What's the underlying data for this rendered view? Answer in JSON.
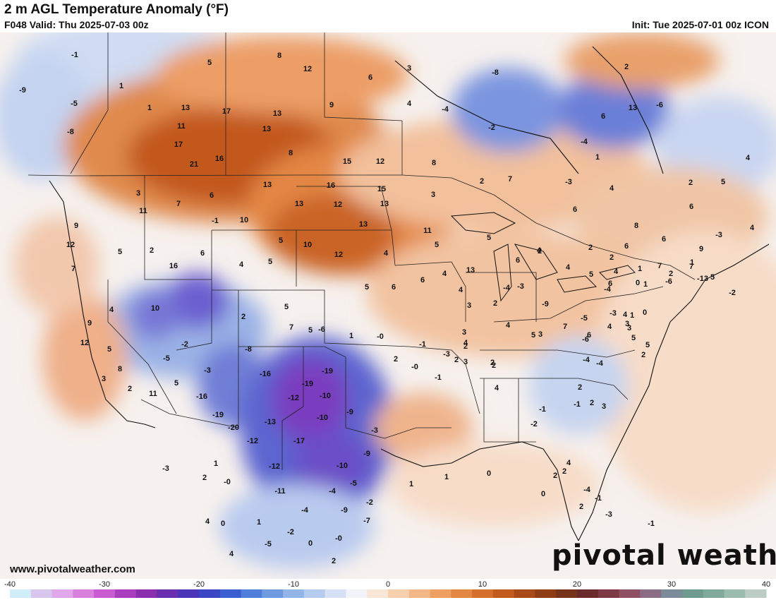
{
  "header": {
    "title": "2 m AGL Temperature Anomaly (°F)",
    "valid": "F048 Valid: Thu 2025-07-03 00z",
    "init": "Init: Tue 2025-07-01 00z ICON"
  },
  "footer": {
    "website": "www.pivotalweather.com",
    "wordmark": "pivotal weather"
  },
  "legend": {
    "ticks": [
      "-40",
      "-30",
      "-20",
      "-10",
      "0",
      "10",
      "20",
      "30",
      "40"
    ],
    "tick_values": [
      -40,
      -30,
      -20,
      -10,
      0,
      10,
      20,
      30,
      40
    ],
    "colors": [
      "#cfeef8",
      "#d9c6ef",
      "#e0a8ea",
      "#d97fdc",
      "#c85bd0",
      "#a93fbf",
      "#8a2fae",
      "#6a2fb0",
      "#4a35b8",
      "#3a46c4",
      "#3b5fd0",
      "#4f7fda",
      "#6f9ae0",
      "#93b5e8",
      "#b6ccef",
      "#d6e1f5",
      "#f1f3f9",
      "#fae6d6",
      "#f7d0b0",
      "#f3b888",
      "#eea063",
      "#e38744",
      "#d66f2c",
      "#c2591d",
      "#a84a17",
      "#8c3d14",
      "#76341a",
      "#6b2b2b",
      "#7d3a45",
      "#905063",
      "#8b6d86",
      "#7d8a99",
      "#6f9a8e",
      "#7fa99a",
      "#9bbbae",
      "#bccdc6"
    ]
  },
  "map": {
    "values": [
      "-1",
      "-9",
      "-5",
      "-8",
      "1",
      "1",
      "5",
      "8",
      "12",
      "13",
      "17",
      "13",
      "11",
      "13",
      "17",
      "9",
      "6",
      "3",
      "-8",
      "-2",
      "-4",
      "4",
      "2",
      "-6",
      "13",
      "6",
      "-4",
      "1",
      "8",
      "16",
      "21",
      "15",
      "12",
      "8",
      "3",
      "2",
      "7",
      "3",
      "11",
      "7",
      "6",
      "13",
      "16",
      "15",
      "13",
      "12",
      "13",
      "13",
      "9",
      "-1",
      "10",
      "12",
      "5",
      "5",
      "2",
      "10",
      "12",
      "16",
      "7",
      "6",
      "4",
      "11",
      "5",
      "4",
      "5",
      "5",
      "2",
      "-3",
      "4",
      "8",
      "6",
      "2",
      "4",
      "-3",
      "4",
      "6",
      "5",
      "6",
      "6",
      "2",
      "2",
      "7",
      "7",
      "9",
      "13",
      "6",
      "4",
      "4",
      "5",
      "4",
      "6",
      "1",
      "-6",
      "-13",
      "0",
      "4",
      "10",
      "9",
      "5",
      "8",
      "12",
      "3",
      "2",
      "11",
      "5",
      "2",
      "5",
      "7",
      "5",
      "5",
      "6",
      "6",
      "4",
      "4",
      "3",
      "2",
      "-4",
      "-3",
      "-9",
      "-2",
      "-5",
      "-3",
      "-8",
      "-16",
      "-16",
      "-19",
      "-20",
      "-19",
      "-19",
      "-12",
      "-10",
      "-10",
      "-9",
      "-3",
      "-9",
      "-13",
      "-12",
      "-17",
      "-12",
      "-11",
      "-10",
      "-5",
      "-4",
      "-9",
      "-2",
      "-7",
      "-4",
      "-2",
      "-0",
      "0",
      "2",
      "-5",
      "4",
      "1",
      "1",
      "-6",
      "-0",
      "-1",
      "2",
      "-0",
      "-3",
      "2",
      "-1",
      "2",
      "4",
      "3",
      "2",
      "3",
      "4",
      "3",
      "4",
      "2",
      "5",
      "7",
      "6",
      "4",
      "4",
      "0",
      "3",
      "5",
      "4",
      "-4",
      "-5",
      "-6",
      "-1",
      "-4",
      "-1",
      "-2",
      "2",
      "-3",
      "5",
      "3",
      "1",
      "1",
      "1",
      "0",
      "2",
      "2",
      "0",
      "2",
      "-1",
      "-4",
      "-3",
      "-1",
      "2",
      "3",
      "2",
      "2",
      "1",
      "1",
      "5",
      "-2",
      "-4",
      "-3",
      "2",
      "1",
      "-0",
      "0",
      "4"
    ]
  }
}
